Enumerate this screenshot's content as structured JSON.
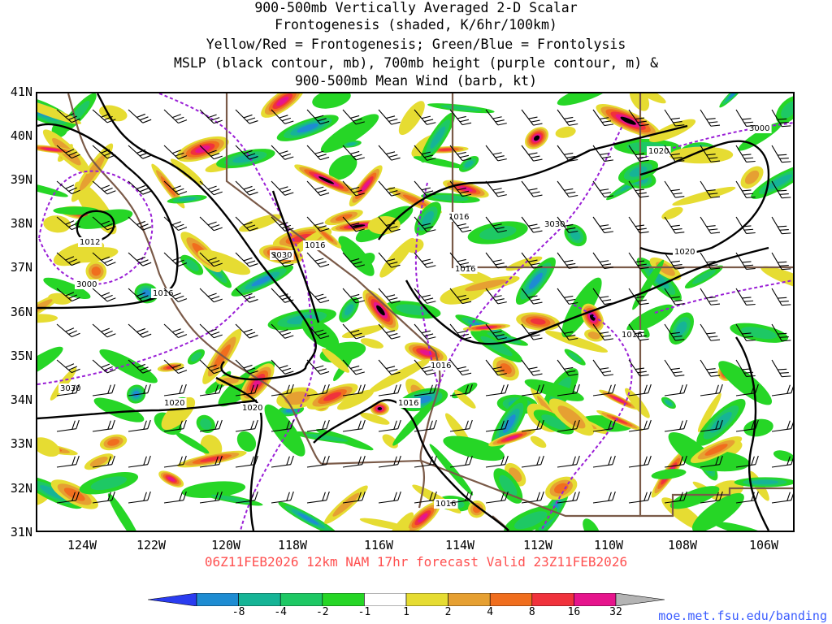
{
  "title_lines": [
    "900-500mb Vertically Averaged 2-D Scalar",
    "Frontogenesis (shaded, K/6hr/100km)",
    "Yellow/Red = Frontogenesis;  Green/Blue = Frontolysis",
    "MSLP (black contour, mb), 700mb height (purple contour, m) &",
    "900-500mb Mean Wind (barb, kt)"
  ],
  "valid_line": "06Z11FEB2026 12km NAM 17hr forecast Valid 23Z11FEB2026",
  "credit": "moe.met.fsu.edu/banding",
  "lat_labels": [
    "41N",
    "40N",
    "39N",
    "38N",
    "37N",
    "36N",
    "35N",
    "34N",
    "33N",
    "32N",
    "31N"
  ],
  "lon_labels": [
    "124W",
    "122W",
    "120W",
    "118W",
    "116W",
    "114W",
    "112W",
    "110W",
    "108W",
    "106W"
  ],
  "colorbar": {
    "labels": [
      "-8",
      "-4",
      "-2",
      "-1",
      "1",
      "2",
      "4",
      "8",
      "16",
      "32"
    ],
    "colors": [
      "#2a3cf0",
      "#1e8cd2",
      "#16b496",
      "#1ec864",
      "#26d626",
      "#ffffff",
      "#e6dc32",
      "#e6a032",
      "#f06e1e",
      "#f0323c",
      "#e6148c",
      "#000000"
    ]
  },
  "mslp_labels": [
    "1012",
    "1016",
    "1016",
    "1016",
    "1016",
    "1016",
    "1016",
    "1016",
    "1016",
    "1020",
    "1020",
    "1020",
    "1020"
  ],
  "height_labels": [
    "3000",
    "3030",
    "3030",
    "3030",
    "3000"
  ],
  "colors": {
    "mslp": "#000000",
    "height": "#9a1fd6",
    "border": "#7a5a48",
    "valid": "#ff5050",
    "credit": "#3a5cff"
  }
}
